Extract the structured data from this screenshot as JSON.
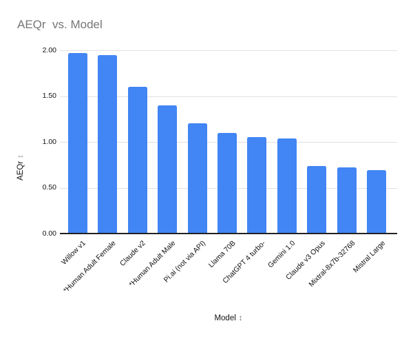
{
  "chart_data": {
    "type": "bar",
    "title": "AEQr  vs. Model",
    "xlabel": "Model",
    "ylabel": "AEQr",
    "axis_arrow": "↕",
    "categories": [
      "Willow v1",
      "*Human Adult Female",
      "Claude v2",
      "*Human Adult Male",
      "Pi.ai (not via API)",
      "Llama 70B",
      "ChatGPT 4 turbo-",
      "Gemini 1.0",
      "Claude v3 Opus",
      "Mixtral-8x7b-32768",
      "Mistral Large"
    ],
    "values": [
      1.97,
      1.95,
      1.6,
      1.4,
      1.2,
      1.1,
      1.05,
      1.04,
      0.74,
      0.72,
      0.69
    ],
    "ylim": [
      0,
      2
    ],
    "ytick_values": [
      0,
      0.5,
      1,
      1.5,
      2
    ],
    "ytick_labels": [
      "0.00",
      "0.50",
      "1.00",
      "1.50",
      "2.00"
    ],
    "grid": true,
    "legend": "none",
    "colors": {
      "bar": "#4285f4",
      "title_text": "#757575",
      "gridline": "#e0e0e0",
      "axis_line": "#212121",
      "tick_text": "#111111",
      "axis_arrow": "#757575"
    }
  }
}
